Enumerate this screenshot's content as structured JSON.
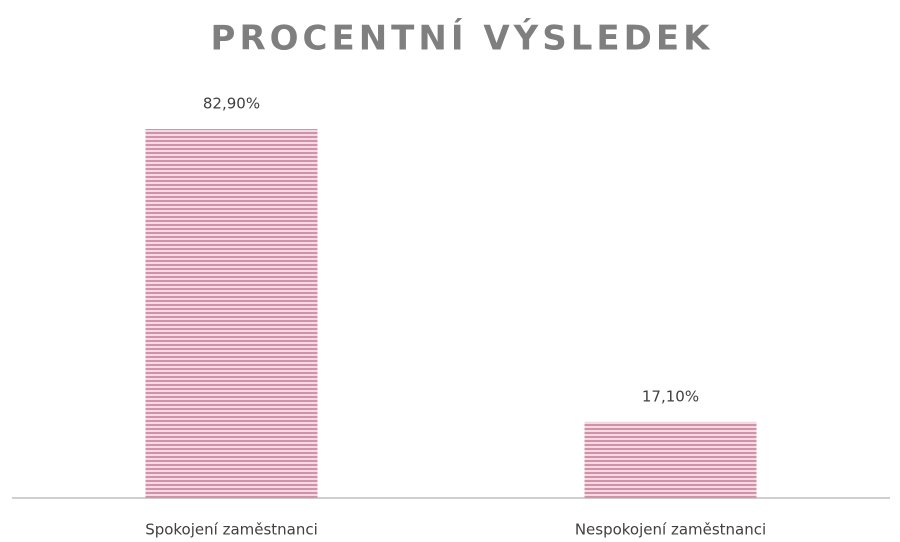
{
  "chart_data": {
    "type": "bar",
    "title": "PROCENTNÍ VÝSLEDEK",
    "categories": [
      "Spokojení zaměstnanci",
      "Nespokojení zaměstnanci"
    ],
    "values": [
      82.9,
      17.1
    ],
    "value_labels": [
      "82,90%",
      "17,10%"
    ],
    "color": "#d291a8"
  }
}
